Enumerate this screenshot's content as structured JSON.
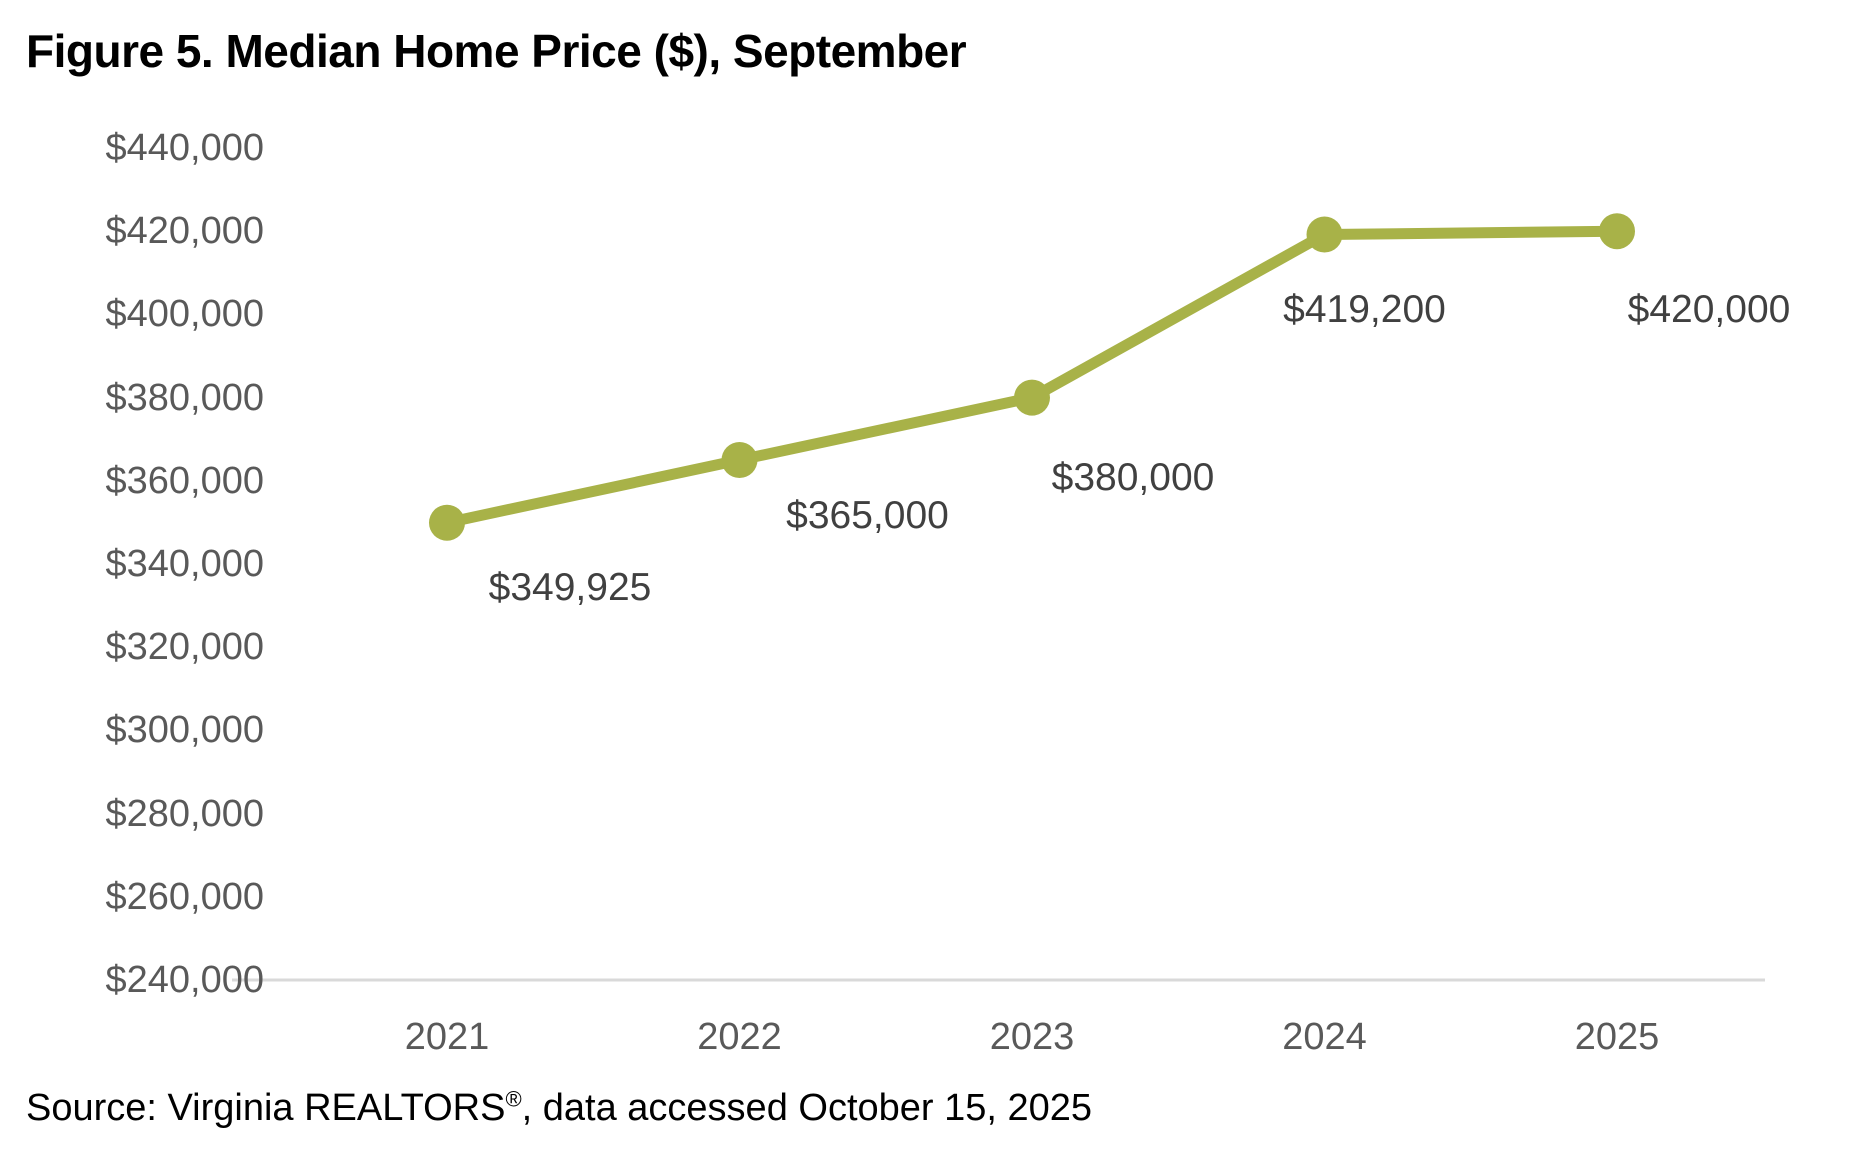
{
  "title": "Figure 5. Median Home Price ($), September",
  "source": {
    "prefix": "Source: Virginia REALTORS",
    "registered_mark": "®",
    "suffix": ", data accessed October 15, 2025"
  },
  "chart_data": {
    "type": "line",
    "title": "Figure 5. Median Home Price ($), September",
    "categories": [
      "2021",
      "2022",
      "2023",
      "2024",
      "2025"
    ],
    "series": [
      {
        "name": "Median Home Price ($), September",
        "values": [
          349925,
          365000,
          380000,
          419200,
          420000
        ]
      }
    ],
    "point_labels": [
      "$349,925",
      "$365,000",
      "$380,000",
      "$419,200",
      "$420,000"
    ],
    "xlabel": "",
    "ylabel": "",
    "ylim": [
      240000,
      440000
    ],
    "y_tick_step": 20000,
    "y_tick_labels": [
      "$440,000",
      "$420,000",
      "$400,000",
      "$380,000",
      "$360,000",
      "$340,000",
      "$320,000",
      "$300,000",
      "$280,000",
      "$260,000",
      "$240,000"
    ],
    "grid": false,
    "legend_position": "none",
    "colors": {
      "line": "#a8b248",
      "marker": "#a8b248",
      "axis_line": "#d9d9d9",
      "tick_label": "#595959",
      "data_label": "#404040",
      "title": "#000000",
      "background": "#ffffff"
    }
  }
}
